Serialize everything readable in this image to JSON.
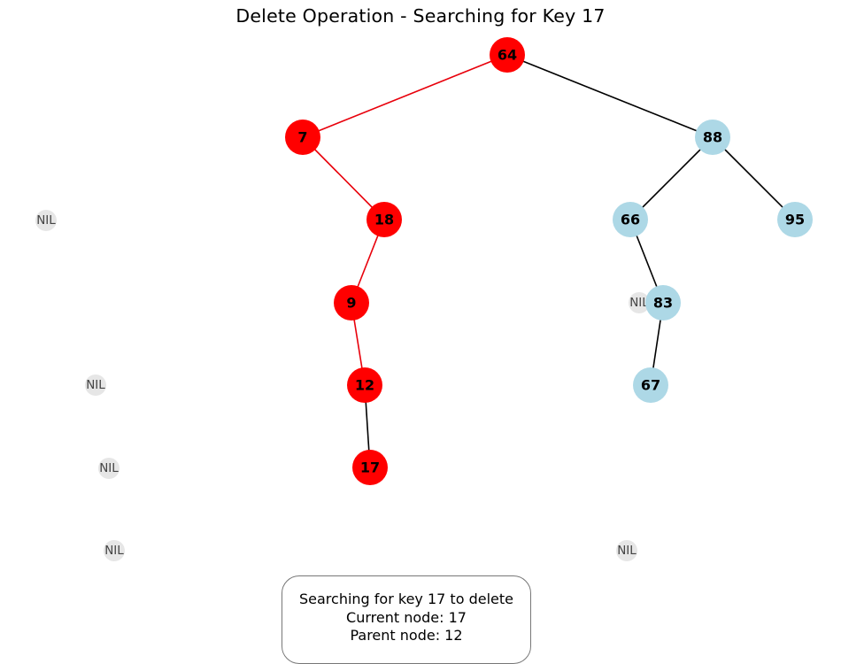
{
  "title": "Delete Operation - Searching for Key 17",
  "colors": {
    "path_node": "#ff0000",
    "normal_node": "#add8e6",
    "nil_node": "#e6e6e6",
    "path_edge": "#e8000b",
    "normal_edge": "#000000"
  },
  "tree": {
    "nodes": [
      {
        "key": "64",
        "state": "path"
      },
      {
        "key": "7",
        "state": "path"
      },
      {
        "key": "88",
        "state": "normal"
      },
      {
        "key": "18",
        "state": "path"
      },
      {
        "key": "66",
        "state": "normal"
      },
      {
        "key": "95",
        "state": "normal"
      },
      {
        "key": "9",
        "state": "path"
      },
      {
        "key": "83",
        "state": "normal"
      },
      {
        "key": "12",
        "state": "path"
      },
      {
        "key": "67",
        "state": "normal"
      },
      {
        "key": "17",
        "state": "path"
      }
    ],
    "edges": [
      {
        "from": "64",
        "to": "7",
        "state": "path"
      },
      {
        "from": "64",
        "to": "88",
        "state": "normal"
      },
      {
        "from": "7",
        "to": "18",
        "state": "path"
      },
      {
        "from": "88",
        "to": "66",
        "state": "normal"
      },
      {
        "from": "88",
        "to": "95",
        "state": "normal"
      },
      {
        "from": "18",
        "to": "9",
        "state": "path"
      },
      {
        "from": "66",
        "to": "83",
        "state": "normal"
      },
      {
        "from": "9",
        "to": "12",
        "state": "path"
      },
      {
        "from": "83",
        "to": "67",
        "state": "normal"
      },
      {
        "from": "12",
        "to": "17",
        "state": "normal"
      }
    ],
    "nil_label": "NIL",
    "nil_count": 6
  },
  "status": {
    "line1": "Searching for key 17 to delete",
    "line2": "Current node: 17",
    "line3": "Parent node: 12"
  }
}
